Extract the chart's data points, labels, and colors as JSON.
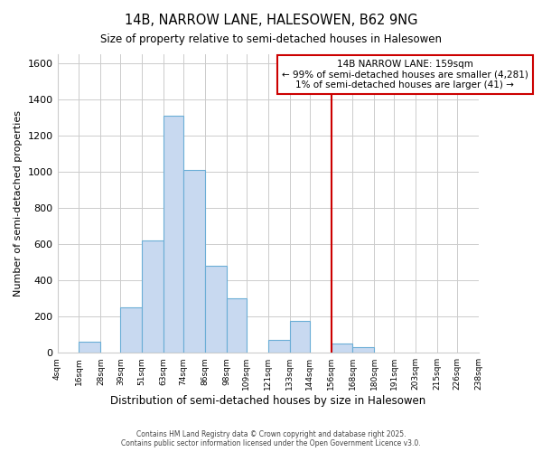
{
  "title": "14B, NARROW LANE, HALESOWEN, B62 9NG",
  "subtitle": "Size of property relative to semi-detached houses in Halesowen",
  "xlabel": "Distribution of semi-detached houses by size in Halesowen",
  "ylabel": "Number of semi-detached properties",
  "bin_labels": [
    "4sqm",
    "16sqm",
    "28sqm",
    "39sqm",
    "51sqm",
    "63sqm",
    "74sqm",
    "86sqm",
    "98sqm",
    "109sqm",
    "121sqm",
    "133sqm",
    "144sqm",
    "156sqm",
    "168sqm",
    "180sqm",
    "191sqm",
    "203sqm",
    "215sqm",
    "226sqm",
    "238sqm"
  ],
  "bin_edges": [
    4,
    16,
    28,
    39,
    51,
    63,
    74,
    86,
    98,
    109,
    121,
    133,
    144,
    156,
    168,
    180,
    191,
    203,
    215,
    226,
    238
  ],
  "bar_heights": [
    0,
    60,
    0,
    250,
    620,
    1310,
    1010,
    480,
    300,
    0,
    70,
    175,
    0,
    50,
    30,
    0,
    0,
    0,
    0,
    0
  ],
  "bar_color": "#c8d9f0",
  "bar_edge_color": "#6baed6",
  "vline_x": 156,
  "vline_color": "#cc0000",
  "annotation_title": "14B NARROW LANE: 159sqm",
  "annotation_line1": "← 99% of semi-detached houses are smaller (4,281)",
  "annotation_line2": "1% of semi-detached houses are larger (41) →",
  "annotation_box_color": "white",
  "annotation_box_edge": "#cc0000",
  "ylim": [
    0,
    1650
  ],
  "yticks": [
    0,
    200,
    400,
    600,
    800,
    1000,
    1200,
    1400,
    1600
  ],
  "footer1": "Contains HM Land Registry data © Crown copyright and database right 2025.",
  "footer2": "Contains public sector information licensed under the Open Government Licence v3.0.",
  "background_color": "#ffffff"
}
